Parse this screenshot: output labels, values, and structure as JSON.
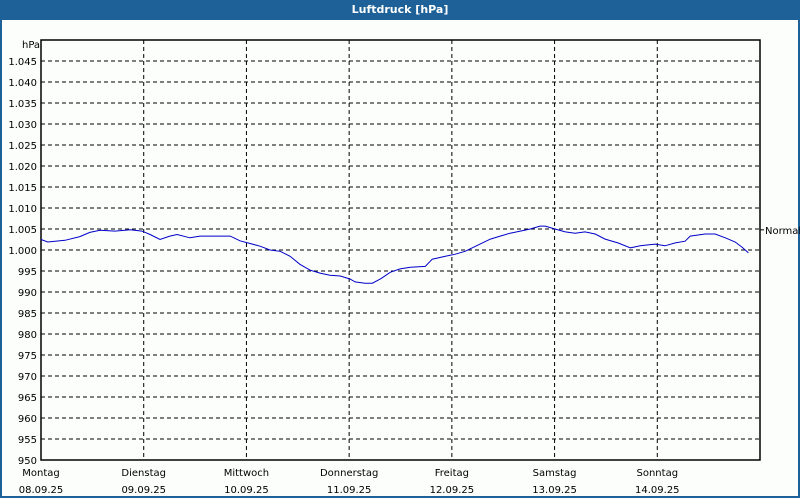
{
  "window": {
    "title": "Luftdruck [hPa]"
  },
  "chart_data": {
    "type": "line",
    "title": "Luftdruck [hPa]",
    "ylabel": "hPa",
    "xlabel": "",
    "ylim": [
      950,
      1050
    ],
    "y_ticks": [
      1045,
      1040,
      1035,
      1030,
      1025,
      1020,
      1015,
      1010,
      1005,
      1000,
      995,
      990,
      985,
      980,
      975,
      970,
      965,
      960,
      955,
      950
    ],
    "y_tick_labels": [
      "1.045",
      "1.040",
      "1.035",
      "1.030",
      "1.025",
      "1.020",
      "1.015",
      "1.010",
      "1.005",
      "1.000",
      "995",
      "990",
      "985",
      "980",
      "975",
      "970",
      "965",
      "960",
      "955",
      "950"
    ],
    "x_unit": "hours since Montag 08.09.25 00:00",
    "xlim": [
      0,
      168
    ],
    "x_ticks": [
      {
        "day": "Montag",
        "date": "08.09.25",
        "hour": 0
      },
      {
        "day": "Dienstag",
        "date": "09.09.25",
        "hour": 24
      },
      {
        "day": "Mittwoch",
        "date": "10.09.25",
        "hour": 48
      },
      {
        "day": "Donnerstag",
        "date": "11.09.25",
        "hour": 72
      },
      {
        "day": "Freitag",
        "date": "12.09.25",
        "hour": 96
      },
      {
        "day": "Samstag",
        "date": "13.09.25",
        "hour": 120
      },
      {
        "day": "Sonntag",
        "date": "14.09.25",
        "hour": 144
      }
    ],
    "grid": true,
    "reference_line": {
      "label": "Normal",
      "value": 1004.8
    },
    "series": [
      {
        "name": "Luftdruck",
        "color": "#0000c8",
        "x": [
          0,
          1.6,
          5.6,
          9.1,
          11.4,
          13.8,
          17.3,
          20.8,
          23.6,
          25.5,
          27.8,
          30.1,
          31.8,
          34.8,
          37.2,
          44.2,
          46.5,
          51.2,
          53.5,
          55.9,
          58.2,
          60.5,
          62.9,
          65.2,
          67.5,
          69.9,
          72.2,
          73.4,
          75.7,
          77.4,
          79.3,
          81.6,
          83.9,
          86.3,
          89.8,
          91.4,
          94.5,
          96.8,
          99.1,
          102.6,
          105.0,
          107.3,
          109.6,
          112.0,
          114.3,
          116.6,
          117.8,
          120.1,
          122.5,
          124.8,
          127.1,
          129.5,
          131.8,
          134.8,
          137.7,
          140.0,
          141.6,
          143.5,
          145.8,
          148.2,
          150.5,
          151.7,
          155.2,
          157.5,
          159.9,
          162.2,
          163.8,
          165.3
        ],
        "values": [
          1002.5,
          1001.9,
          1002.3,
          1003.2,
          1004.2,
          1004.7,
          1004.5,
          1004.8,
          1004.5,
          1003.7,
          1002.5,
          1003.3,
          1003.7,
          1002.9,
          1003.3,
          1003.3,
          1002.2,
          1000.9,
          1000.0,
          999.7,
          998.5,
          996.6,
          995.2,
          994.5,
          994.0,
          993.8,
          993.1,
          992.4,
          992.1,
          992.1,
          993.1,
          994.7,
          995.5,
          995.9,
          996.1,
          997.8,
          998.5,
          999.0,
          999.7,
          1001.4,
          1002.6,
          1003.3,
          1004.0,
          1004.5,
          1005.0,
          1005.7,
          1005.7,
          1005.0,
          1004.3,
          1004.0,
          1004.3,
          1003.8,
          1002.6,
          1001.7,
          1000.5,
          1001.0,
          1001.2,
          1001.4,
          1001.0,
          1001.7,
          1002.1,
          1003.3,
          1003.8,
          1003.8,
          1002.9,
          1001.9,
          1000.7,
          999.3
        ]
      }
    ],
    "legend": null
  }
}
